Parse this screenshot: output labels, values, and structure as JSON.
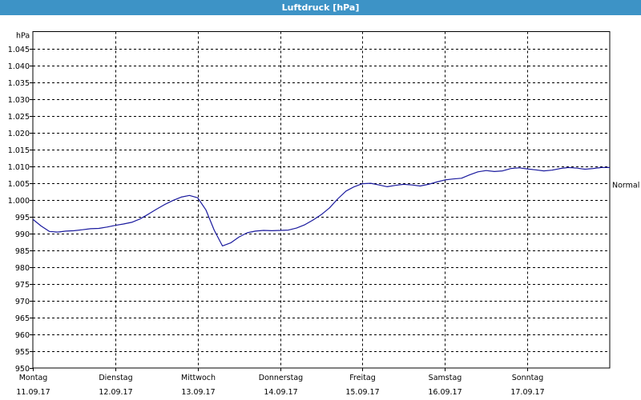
{
  "window": {
    "title": "Luftdruck [hPa]"
  },
  "chart_data": {
    "type": "line",
    "title": "Luftdruck [hPa]",
    "ylabel": "hPa",
    "xlabel": "",
    "ylim": [
      950,
      1050
    ],
    "xlim": [
      0,
      7
    ],
    "grid": true,
    "y_ticks": [
      950,
      955,
      960,
      965,
      970,
      975,
      980,
      985,
      990,
      995,
      1000,
      1005,
      1010,
      1015,
      1020,
      1025,
      1030,
      1035,
      1040,
      1045
    ],
    "y_tick_labels": [
      "950",
      "955",
      "960",
      "965",
      "970",
      "975",
      "980",
      "985",
      "990",
      "995",
      "1.000",
      "1.005",
      "1.010",
      "1.015",
      "1.020",
      "1.025",
      "1.030",
      "1.035",
      "1.040",
      "1.045"
    ],
    "x_ticks": [
      {
        "day": "Montag",
        "date": "11.09.17"
      },
      {
        "day": "Dienstag",
        "date": "12.09.17"
      },
      {
        "day": "Mittwoch",
        "date": "13.09.17"
      },
      {
        "day": "Donnerstag",
        "date": "14.09.17"
      },
      {
        "day": "Freitag",
        "date": "15.09.17"
      },
      {
        "day": "Samstag",
        "date": "16.09.17"
      },
      {
        "day": "Sonntag",
        "date": "17.09.17"
      }
    ],
    "annotations": [
      {
        "text": "Normal",
        "y": 1004.5
      }
    ],
    "line_color": "#1a1a9e",
    "series": [
      {
        "x": [
          0,
          0.1,
          0.2,
          0.3,
          0.4,
          0.5,
          0.6,
          0.7,
          0.8,
          0.9,
          1.0,
          1.1,
          1.2,
          1.3,
          1.4,
          1.5,
          1.6,
          1.7,
          1.8,
          1.9,
          2.0,
          2.1,
          2.2,
          2.3,
          2.4,
          2.5,
          2.6,
          2.7,
          2.8,
          2.9,
          3.0,
          3.1,
          3.2,
          3.3,
          3.4,
          3.5,
          3.6,
          3.7,
          3.8,
          3.9,
          4.0,
          4.1,
          4.2,
          4.3,
          4.4,
          4.5,
          4.6,
          4.7,
          4.8,
          4.9,
          5.0,
          5.1,
          5.2,
          5.3,
          5.4,
          5.5,
          5.6,
          5.7,
          5.8,
          5.9,
          6.0,
          6.1,
          6.2,
          6.3,
          6.4,
          6.5,
          6.6,
          6.7,
          6.8,
          6.9,
          7.0
        ],
        "values": [
          994.2,
          992.2,
          990.6,
          990.4,
          990.7,
          990.8,
          991.1,
          991.4,
          991.5,
          991.9,
          992.4,
          992.8,
          993.3,
          994.3,
          995.7,
          997.2,
          998.6,
          999.8,
          1000.8,
          1001.3,
          1000.6,
          997.0,
          991.0,
          986.3,
          987.2,
          988.9,
          990.2,
          990.7,
          990.9,
          990.8,
          990.9,
          991.0,
          991.6,
          992.6,
          994.0,
          995.6,
          997.6,
          1000.3,
          1002.6,
          1003.9,
          1004.8,
          1004.9,
          1004.4,
          1003.9,
          1004.3,
          1004.6,
          1004.4,
          1004.1,
          1004.6,
          1005.3,
          1005.9,
          1006.2,
          1006.4,
          1007.4,
          1008.3,
          1008.7,
          1008.4,
          1008.6,
          1009.3,
          1009.5,
          1009.2,
          1008.9,
          1008.6,
          1008.8,
          1009.3,
          1009.6,
          1009.4,
          1009.1,
          1009.3,
          1009.6,
          1009.6
        ]
      }
    ]
  }
}
